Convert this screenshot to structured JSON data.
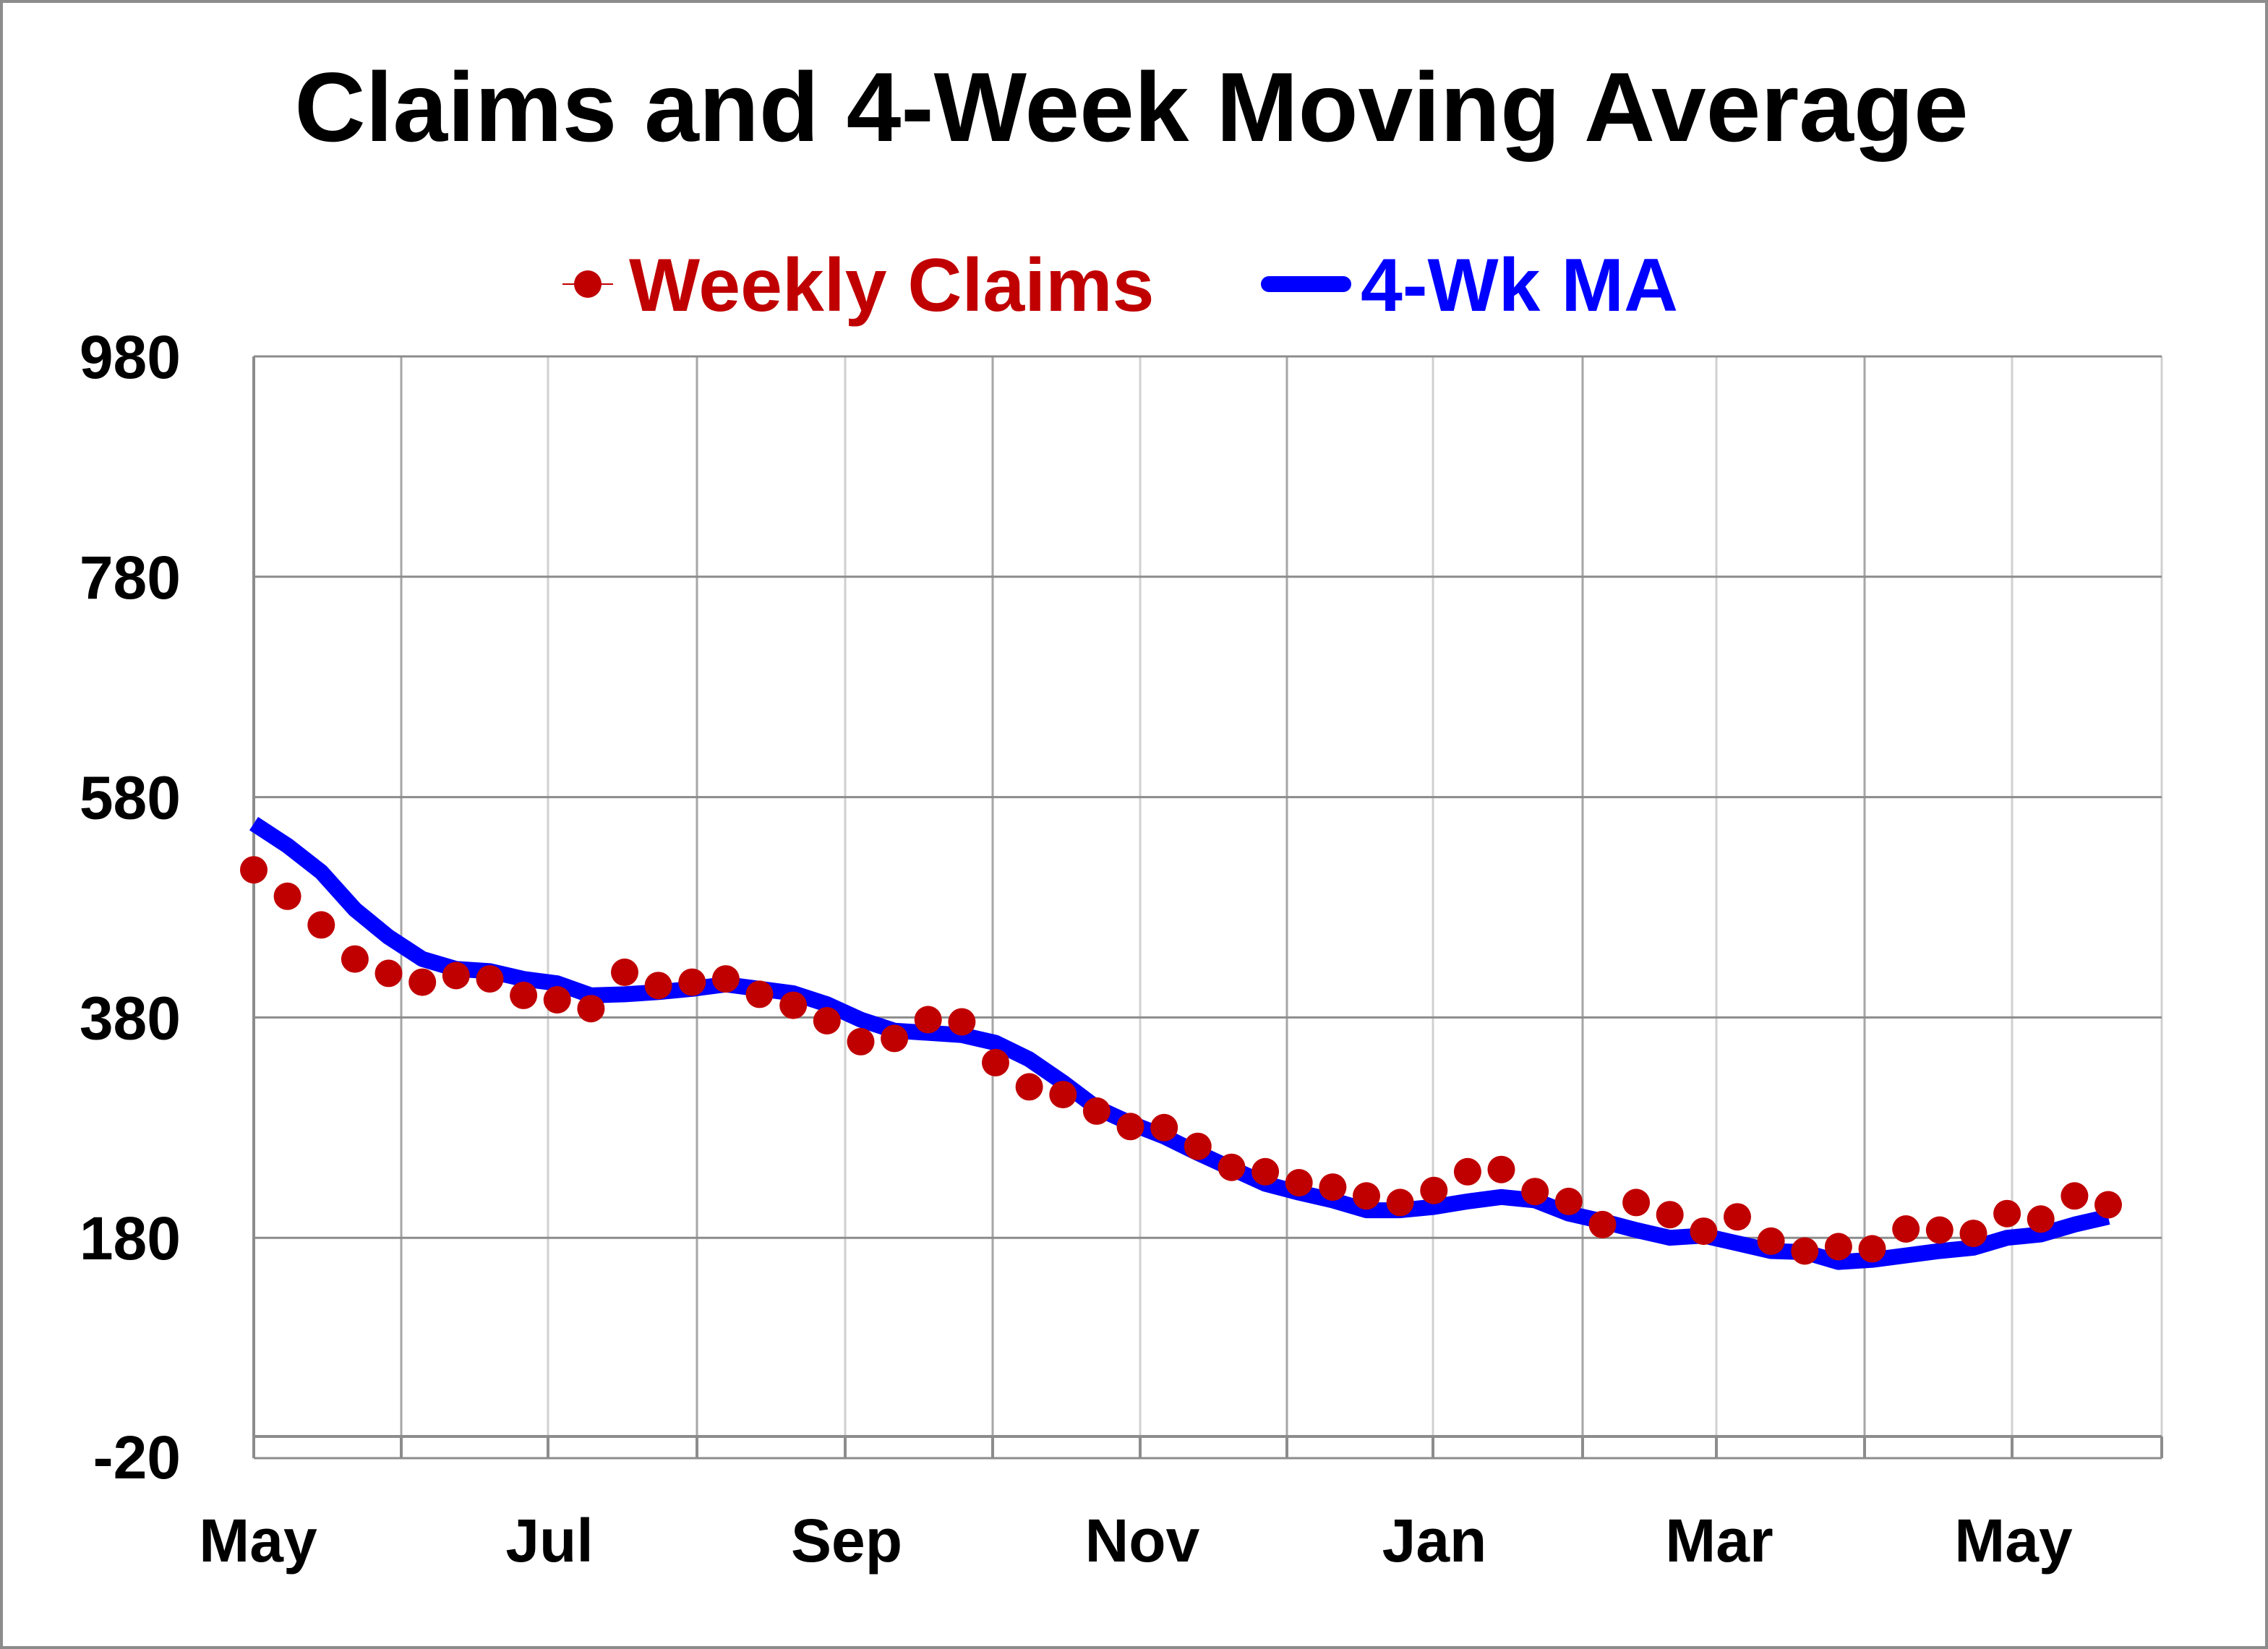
{
  "chart_data": {
    "type": "line",
    "title": "Claims and 4-Week Moving Average",
    "xlabel": "",
    "ylabel": "",
    "ylim": [
      -20,
      980
    ],
    "y_ticks": [
      "980",
      "780",
      "580",
      "380",
      "180",
      "-20"
    ],
    "x_ticks": [
      "May",
      "Jul",
      "Sep",
      "Nov",
      "Jan",
      "Mar",
      "May"
    ],
    "grid": true,
    "legend_position": "top-center",
    "series": [
      {
        "name": "Weekly Claims",
        "style": "markers",
        "color": "#c00000",
        "values": [
          514,
          490,
          464,
          433,
          420,
          412,
          418,
          415,
          400,
          396,
          388,
          421,
          409,
          412,
          415,
          401,
          391,
          377,
          358,
          361,
          378,
          376,
          339,
          317,
          310,
          295,
          281,
          280,
          263,
          244,
          240,
          230,
          226,
          218,
          212,
          223,
          240,
          242,
          222,
          213,
          192,
          212,
          201,
          186,
          199,
          177,
          168,
          172,
          170,
          188,
          187,
          184,
          202,
          197,
          218,
          210
        ]
      },
      {
        "name": "4-Wk MA",
        "style": "line",
        "color": "#0000ff",
        "values": [
          556,
          536,
          512,
          478,
          453,
          433,
          424,
          422,
          415,
          411,
          400,
          401,
          403,
          406,
          410,
          406,
          402,
          392,
          378,
          368,
          366,
          364,
          357,
          342,
          321,
          298,
          284,
          272,
          257,
          243,
          229,
          221,
          214,
          205,
          205,
          208,
          213,
          217,
          214,
          202,
          195,
          187,
          180,
          182,
          175,
          168,
          167,
          158,
          160,
          164,
          168,
          171,
          180,
          183,
          192,
          199
        ]
      }
    ]
  }
}
